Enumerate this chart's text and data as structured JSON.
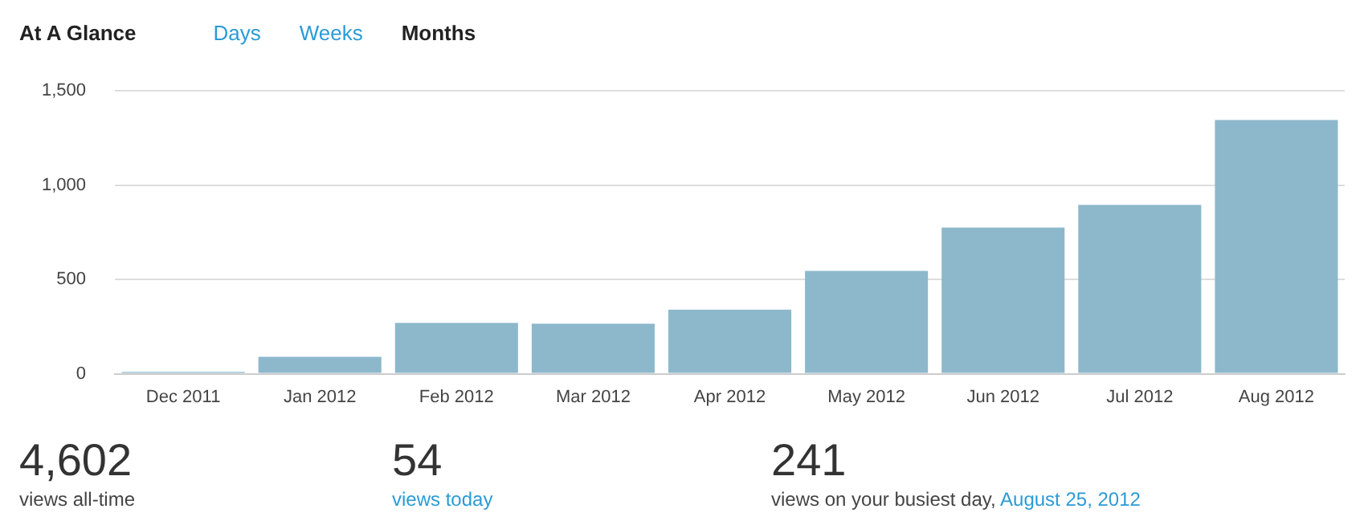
{
  "chart_data": {
    "type": "bar",
    "title": "At A Glance",
    "categories": [
      "Dec 2011",
      "Jan 2012",
      "Feb 2012",
      "Mar 2012",
      "Apr 2012",
      "May 2012",
      "Jun 2012",
      "Jul 2012",
      "Aug 2012"
    ],
    "values": [
      10,
      90,
      270,
      265,
      340,
      545,
      775,
      895,
      1345
    ],
    "color": "#8db8cb",
    "ylim": [
      0,
      1500
    ],
    "yticks": [
      0,
      {
        "value": 500,
        "label": "500"
      },
      {
        "value": 1000,
        "label": "1,000"
      },
      {
        "value": 1500,
        "label": "1,500"
      }
    ],
    "grid": "y",
    "legend": false,
    "annotations": [
      "Days",
      "Weeks",
      "Months",
      "4,602",
      "views all-time",
      "54",
      "views today",
      "241",
      "views on your busiest day,",
      "August 25, 2012"
    ]
  }
}
